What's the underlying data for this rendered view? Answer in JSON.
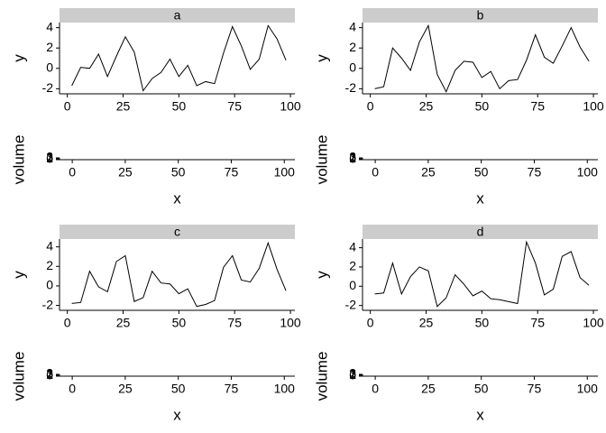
{
  "chart_data": [
    {
      "type": "line",
      "title": "a",
      "ylabel": "y",
      "color": "#000000",
      "x": [
        2,
        6,
        10,
        14,
        18,
        22,
        26,
        30,
        34,
        38,
        42,
        46,
        50,
        54,
        58,
        62,
        66,
        70,
        74,
        78,
        82,
        86,
        90,
        94,
        98
      ],
      "values": [
        -1.7,
        0.1,
        0,
        1.4,
        -0.8,
        1.2,
        3.1,
        1.6,
        -2.2,
        -1,
        -0.4,
        0.9,
        -0.8,
        0.3,
        -1.7,
        -1.3,
        -1.5,
        1.5,
        4.1,
        2.2,
        -0.1,
        0.9,
        4.2,
        2.9,
        0.8
      ],
      "xlim": [
        -3.5,
        102
      ],
      "xticks": [
        0,
        25,
        50,
        75,
        100
      ],
      "ylim": [
        -2.5,
        4.5
      ],
      "yticks": [
        -2,
        0,
        2,
        4
      ]
    },
    {
      "type": "bar",
      "ylabel": "volume",
      "xlabel": "x",
      "xlim": [
        -6,
        105
      ],
      "xticks": [
        0,
        25,
        50,
        75,
        100
      ],
      "ylim": [
        0,
        3
      ],
      "yticks": [
        0,
        1,
        2,
        3
      ]
    },
    {
      "type": "line",
      "title": "b",
      "ylabel": "y",
      "color": "#000000",
      "x": [
        2,
        6,
        10,
        14,
        18,
        22,
        26,
        30,
        34,
        38,
        42,
        46,
        50,
        54,
        58,
        62,
        66,
        70,
        74,
        78,
        82,
        86,
        90,
        94,
        98
      ],
      "values": [
        -2,
        -1.8,
        2,
        1,
        -0.2,
        2.6,
        4.2,
        -0.6,
        -2.3,
        -0.2,
        0.7,
        0.6,
        -0.9,
        -0.3,
        -2,
        -1.2,
        -1.1,
        0.8,
        3.3,
        1.1,
        0.5,
        2.2,
        4,
        2.1,
        0.7
      ],
      "xlim": [
        -3.5,
        102
      ],
      "xticks": [
        0,
        25,
        50,
        75,
        100
      ],
      "ylim": [
        -2.5,
        4.5
      ],
      "yticks": [
        -2,
        0,
        2,
        4
      ]
    },
    {
      "type": "bar",
      "ylabel": "volume",
      "xlabel": "x",
      "xlim": [
        -6,
        105
      ],
      "xticks": [
        0,
        25,
        50,
        75,
        100
      ],
      "ylim": [
        0,
        3
      ],
      "yticks": [
        0,
        1,
        2,
        3
      ]
    },
    {
      "type": "line",
      "title": "c",
      "ylabel": "y",
      "color": "#000000",
      "x": [
        2,
        6,
        10,
        14,
        18,
        22,
        26,
        30,
        34,
        38,
        42,
        46,
        50,
        54,
        58,
        62,
        66,
        70,
        74,
        78,
        82,
        86,
        90,
        94,
        98
      ],
      "values": [
        -1.8,
        -1.7,
        1.5,
        -0.1,
        -0.6,
        2.5,
        3.1,
        -1.6,
        -1.2,
        1.5,
        0.3,
        0.2,
        -0.8,
        -0.3,
        -2.1,
        -1.9,
        -1.5,
        1.9,
        3.1,
        0.6,
        0.4,
        1.8,
        4.4,
        1.7,
        -0.5
      ],
      "xlim": [
        -3.5,
        102
      ],
      "xticks": [
        0,
        25,
        50,
        75,
        100
      ],
      "ylim": [
        -2.5,
        4.8
      ],
      "yticks": [
        -2,
        0,
        2,
        4
      ]
    },
    {
      "type": "bar",
      "ylabel": "volume",
      "xlabel": "x",
      "xlim": [
        -6,
        105
      ],
      "xticks": [
        0,
        25,
        50,
        75,
        100
      ],
      "ylim": [
        0,
        3
      ],
      "yticks": [
        0,
        1,
        2,
        3
      ]
    },
    {
      "type": "line",
      "title": "d",
      "ylabel": "y",
      "color": "#000000",
      "x": [
        2,
        6,
        10,
        14,
        18,
        22,
        26,
        30,
        34,
        38,
        42,
        46,
        50,
        54,
        58,
        62,
        66,
        70,
        74,
        78,
        82,
        86,
        90,
        94,
        98
      ],
      "values": [
        -0.8,
        -0.7,
        2.4,
        -0.8,
        1,
        2,
        1.6,
        -2.1,
        -1.2,
        1.2,
        0.2,
        -1,
        -0.5,
        -1.3,
        -1.4,
        -1.6,
        -1.8,
        4.6,
        2.4,
        -0.9,
        -0.3,
        3.1,
        3.6,
        0.9,
        0.1
      ],
      "xlim": [
        -3.5,
        102
      ],
      "xticks": [
        0,
        25,
        50,
        75,
        100
      ],
      "ylim": [
        -2.5,
        4.9
      ],
      "yticks": [
        -2,
        0,
        2,
        4
      ]
    },
    {
      "type": "bar",
      "ylabel": "volume",
      "xlabel": "x",
      "xlim": [
        -6,
        105
      ],
      "xticks": [
        0,
        25,
        50,
        75,
        100
      ],
      "ylim": [
        0,
        3
      ],
      "yticks": [
        0,
        1,
        2,
        3
      ]
    }
  ]
}
